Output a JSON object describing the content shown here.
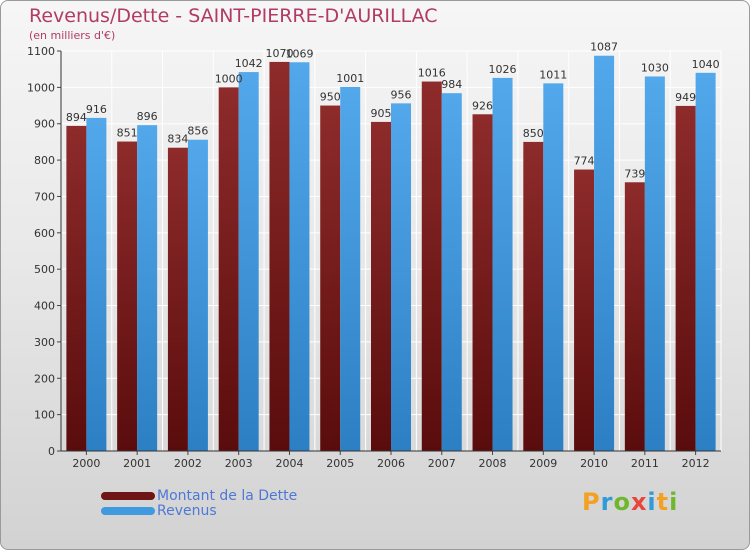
{
  "title": "Revenus/Dette - SAINT-PIERRE-D'AURILLAC",
  "subtitle": "(en milliers d'€)",
  "brand": {
    "letters": [
      "P",
      "r",
      "o",
      "x",
      "i",
      "t",
      "i"
    ],
    "colors": [
      "#f4a021",
      "#2f9bd8",
      "#6fb82e",
      "#e8463c",
      "#2f9bd8",
      "#f4a021",
      "#6fb82e"
    ]
  },
  "colors": {
    "debt": "#7a1a1a",
    "revenue": "#3f9ae0"
  },
  "chart_data": {
    "type": "bar",
    "title": "Revenus/Dette - SAINT-PIERRE-D'AURILLAC",
    "ylabel": "(en milliers d'€)",
    "xlabel": "",
    "ylim": [
      0,
      1100
    ],
    "yticks": [
      0,
      100,
      200,
      300,
      400,
      500,
      600,
      700,
      800,
      900,
      1000,
      1100
    ],
    "grid": true,
    "legend_position": "bottom-left",
    "categories": [
      "2000",
      "2001",
      "2002",
      "2003",
      "2004",
      "2005",
      "2006",
      "2007",
      "2008",
      "2009",
      "2010",
      "2011",
      "2012"
    ],
    "series": [
      {
        "name": "Montant de la Dette",
        "values": [
          894,
          851,
          834,
          1000,
          1070,
          950,
          905,
          1016,
          926,
          850,
          774,
          739,
          949
        ]
      },
      {
        "name": "Revenus",
        "values": [
          916,
          896,
          856,
          1042,
          1069,
          1001,
          956,
          984,
          1026,
          1011,
          1087,
          1030,
          1040
        ]
      }
    ]
  }
}
